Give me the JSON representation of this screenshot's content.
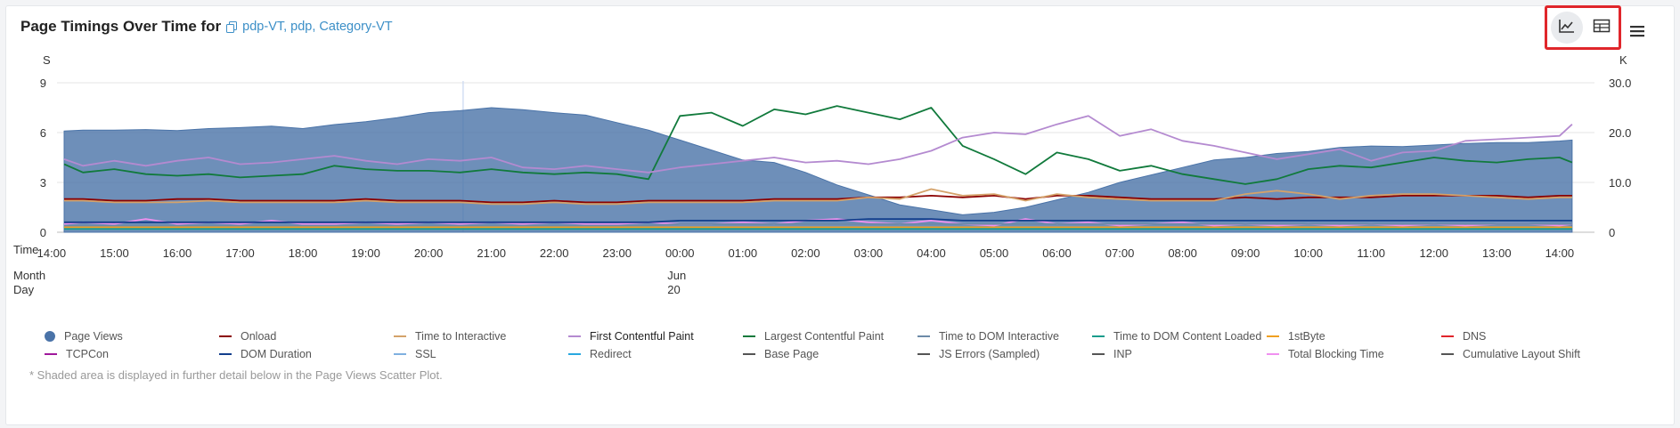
{
  "header": {
    "title": "Page Timings Over Time for",
    "link_text": "pdp-VT, pdp, Category-VT",
    "line_chart_button": "line-chart",
    "table_button": "table",
    "menu_button": "menu"
  },
  "footnote": "* Shaded area is displayed in further detail below in the Page Views Scatter Plot.",
  "legend": [
    {
      "label": "Page Views",
      "color": "#4a73a8",
      "kind": "dot"
    },
    {
      "label": "Onload",
      "color": "#8b0000",
      "kind": "line"
    },
    {
      "label": "Time to Interactive",
      "color": "#d4a26a",
      "kind": "line"
    },
    {
      "label": "First Contentful Paint",
      "color": "#b48ad0",
      "kind": "line"
    },
    {
      "label": "Largest Contentful Paint",
      "color": "#117a3c",
      "kind": "line"
    },
    {
      "label": "Time to DOM Interactive",
      "color": "#6c8aa8",
      "kind": "line"
    },
    {
      "label": "Time to DOM Content Loaded",
      "color": "#1a9c8c",
      "kind": "line"
    },
    {
      "label": "1stByte",
      "color": "#f0a020",
      "kind": "line"
    },
    {
      "label": "DNS",
      "color": "#e0242b",
      "kind": "line"
    },
    {
      "label": "TCPCon",
      "color": "#a0189c",
      "kind": "line"
    },
    {
      "label": "DOM Duration",
      "color": "#123e8c",
      "kind": "line"
    },
    {
      "label": "SSL",
      "color": "#7fb0e0",
      "kind": "line"
    },
    {
      "label": "Redirect",
      "color": "#29a8e0",
      "kind": "line"
    },
    {
      "label": "Base Page",
      "color": "#555555",
      "kind": "line"
    },
    {
      "label": "JS Errors (Sampled)",
      "color": "#555555",
      "kind": "line"
    },
    {
      "label": "INP",
      "color": "#555555",
      "kind": "line"
    },
    {
      "label": "Total Blocking Time",
      "color": "#f090f0",
      "kind": "line"
    },
    {
      "label": "Cumulative Layout Shift",
      "color": "#555555",
      "kind": "line"
    }
  ],
  "chart_data": {
    "type": "line",
    "left_axis_unit": "S",
    "right_axis_unit": "K",
    "left_ticks": [
      "0",
      "3",
      "6",
      "9"
    ],
    "left_range": [
      0,
      9
    ],
    "right_ticks": [
      "0",
      "10.0",
      "20.0",
      "30.0"
    ],
    "right_range": [
      0,
      30
    ],
    "x_label_time": "Time",
    "x_label_month_day": "Month\nDay",
    "month_label": "Jun",
    "day_label": "20",
    "x_tick_labels": [
      "14:00",
      "15:00",
      "16:00",
      "17:00",
      "18:00",
      "19:00",
      "20:00",
      "21:00",
      "22:00",
      "23:00",
      "00:00",
      "01:00",
      "02:00",
      "03:00",
      "04:00",
      "05:00",
      "06:00",
      "07:00",
      "08:00",
      "09:00",
      "10:00",
      "11:00",
      "12:00",
      "13:00",
      "14:00"
    ],
    "x_hours": [
      0.2,
      0.5,
      1,
      1.5,
      2,
      2.5,
      3,
      3.5,
      4,
      4.5,
      5,
      5.5,
      6,
      6.5,
      7,
      7.5,
      8,
      8.5,
      9,
      9.5,
      10,
      10.5,
      11,
      11.5,
      12,
      12.5,
      13,
      13.5,
      14,
      14.5,
      15,
      15.5,
      16,
      16.5,
      17,
      17.5,
      18,
      18.5,
      19,
      19.5,
      20,
      20.5,
      21,
      21.5,
      22,
      22.5,
      23,
      23.5,
      24,
      24.2
    ],
    "series": [
      {
        "name": "Page Views",
        "axis": "right",
        "area": true,
        "color": "#4a73a8",
        "values": [
          20.3,
          20.5,
          20.5,
          20.6,
          20.4,
          20.8,
          21.0,
          21.3,
          20.8,
          21.6,
          22.2,
          23.0,
          24.0,
          24.4,
          25.0,
          24.6,
          24.0,
          23.5,
          22.0,
          20.5,
          18.5,
          16.5,
          14.5,
          14.0,
          12.0,
          9.5,
          7.5,
          5.5,
          4.5,
          3.5,
          4.0,
          5.0,
          6.5,
          8.0,
          10.0,
          11.5,
          13.0,
          14.5,
          15.0,
          15.8,
          16.2,
          17.0,
          17.3,
          17.2,
          17.5,
          17.8,
          18.0,
          18.0,
          18.3,
          18.5
        ]
      },
      {
        "name": "Largest Contentful Paint",
        "axis": "left",
        "color": "#117a3c",
        "values": [
          4.1,
          3.6,
          3.8,
          3.5,
          3.4,
          3.5,
          3.3,
          3.4,
          3.5,
          4.0,
          3.8,
          3.7,
          3.7,
          3.6,
          3.8,
          3.6,
          3.5,
          3.6,
          3.5,
          3.2,
          7.0,
          7.2,
          6.4,
          7.4,
          7.1,
          7.6,
          7.2,
          6.8,
          7.5,
          5.2,
          4.4,
          3.5,
          4.8,
          4.4,
          3.7,
          4.0,
          3.5,
          3.2,
          2.9,
          3.2,
          3.8,
          4.0,
          3.9,
          4.2,
          4.5,
          4.3,
          4.2,
          4.4,
          4.5,
          4.2
        ]
      },
      {
        "name": "First Contentful Paint",
        "axis": "left",
        "color": "#b48ad0",
        "values": [
          4.4,
          4.0,
          4.3,
          4.0,
          4.3,
          4.5,
          4.1,
          4.2,
          4.4,
          4.6,
          4.3,
          4.1,
          4.4,
          4.3,
          4.5,
          3.9,
          3.8,
          4.0,
          3.8,
          3.6,
          3.9,
          4.1,
          4.3,
          4.5,
          4.2,
          4.3,
          4.1,
          4.4,
          4.9,
          5.7,
          6.0,
          5.9,
          6.5,
          7.0,
          5.8,
          6.2,
          5.5,
          5.2,
          4.8,
          4.4,
          4.7,
          5.0,
          4.3,
          4.8,
          4.9,
          5.5,
          5.6,
          5.7,
          5.8,
          6.5
        ]
      },
      {
        "name": "Onload",
        "axis": "left",
        "color": "#8b0000",
        "values": [
          2.0,
          2.0,
          1.9,
          1.9,
          2.0,
          2.0,
          1.9,
          1.9,
          1.9,
          1.9,
          2.0,
          1.9,
          1.9,
          1.9,
          1.8,
          1.8,
          1.9,
          1.8,
          1.8,
          1.9,
          1.9,
          1.9,
          1.9,
          2.0,
          2.0,
          2.0,
          2.1,
          2.1,
          2.2,
          2.1,
          2.2,
          2.0,
          2.2,
          2.2,
          2.1,
          2.0,
          2.0,
          2.0,
          2.1,
          2.0,
          2.1,
          2.1,
          2.1,
          2.2,
          2.2,
          2.2,
          2.2,
          2.1,
          2.2,
          2.2
        ]
      },
      {
        "name": "Time to Interactive",
        "axis": "left",
        "color": "#d4a26a",
        "values": [
          1.9,
          1.9,
          1.8,
          1.8,
          1.8,
          1.9,
          1.8,
          1.8,
          1.8,
          1.8,
          1.9,
          1.8,
          1.8,
          1.8,
          1.7,
          1.7,
          1.8,
          1.7,
          1.7,
          1.8,
          1.8,
          1.8,
          1.8,
          1.9,
          1.9,
          1.9,
          2.1,
          2.0,
          2.6,
          2.2,
          2.3,
          1.9,
          2.3,
          2.1,
          2.0,
          1.9,
          1.9,
          1.9,
          2.3,
          2.5,
          2.3,
          2.0,
          2.2,
          2.3,
          2.3,
          2.2,
          2.1,
          2.0,
          2.1,
          2.1
        ]
      },
      {
        "name": "Total Blocking Time",
        "axis": "left",
        "color": "#f090f0",
        "values": [
          0.5,
          0.6,
          0.5,
          0.8,
          0.5,
          0.6,
          0.5,
          0.7,
          0.5,
          0.5,
          0.6,
          0.5,
          0.6,
          0.5,
          0.6,
          0.5,
          0.6,
          0.5,
          0.5,
          0.6,
          0.5,
          0.5,
          0.6,
          0.5,
          0.7,
          0.8,
          0.6,
          0.5,
          0.7,
          0.5,
          0.4,
          0.8,
          0.5,
          0.6,
          0.4,
          0.5,
          0.6,
          0.4,
          0.5,
          0.4,
          0.5,
          0.4,
          0.5,
          0.4,
          0.5,
          0.4,
          0.5,
          0.5,
          0.4,
          0.5
        ]
      },
      {
        "name": "DOM Duration",
        "axis": "left",
        "color": "#123e8c",
        "values": [
          0.6,
          0.6,
          0.6,
          0.6,
          0.6,
          0.6,
          0.6,
          0.6,
          0.6,
          0.6,
          0.6,
          0.6,
          0.6,
          0.6,
          0.6,
          0.6,
          0.6,
          0.6,
          0.6,
          0.6,
          0.7,
          0.7,
          0.7,
          0.7,
          0.7,
          0.7,
          0.8,
          0.8,
          0.8,
          0.7,
          0.7,
          0.7,
          0.7,
          0.7,
          0.7,
          0.7,
          0.7,
          0.7,
          0.7,
          0.7,
          0.7,
          0.7,
          0.7,
          0.7,
          0.7,
          0.7,
          0.7,
          0.7,
          0.7,
          0.7
        ]
      },
      {
        "name": "Time to DOM Interactive",
        "axis": "left",
        "color": "#6c8aa8",
        "values": [
          0.4,
          0.4,
          0.4,
          0.4,
          0.4,
          0.4,
          0.4,
          0.4,
          0.4,
          0.4,
          0.4,
          0.4,
          0.4,
          0.4,
          0.4,
          0.4,
          0.4,
          0.4,
          0.4,
          0.4,
          0.5,
          0.5,
          0.5,
          0.5,
          0.5,
          0.5,
          0.5,
          0.5,
          0.5,
          0.5,
          0.5,
          0.5,
          0.5,
          0.5,
          0.5,
          0.5,
          0.5,
          0.5,
          0.5,
          0.5,
          0.5,
          0.5,
          0.5,
          0.5,
          0.5,
          0.5,
          0.5,
          0.5,
          0.5,
          0.5
        ]
      },
      {
        "name": "1stByte",
        "axis": "left",
        "color": "#f0a020",
        "values": [
          0.3,
          0.3,
          0.3,
          0.3,
          0.3,
          0.3,
          0.3,
          0.3,
          0.3,
          0.3,
          0.3,
          0.3,
          0.3,
          0.3,
          0.3,
          0.3,
          0.3,
          0.3,
          0.3,
          0.3,
          0.3,
          0.3,
          0.3,
          0.3,
          0.3,
          0.3,
          0.3,
          0.3,
          0.3,
          0.3,
          0.3,
          0.3,
          0.3,
          0.3,
          0.3,
          0.3,
          0.3,
          0.3,
          0.3,
          0.3,
          0.3,
          0.3,
          0.3,
          0.3,
          0.3,
          0.3,
          0.3,
          0.3,
          0.3,
          0.3
        ]
      },
      {
        "name": "Time to DOM Content Loaded",
        "axis": "left",
        "color": "#1a9c8c",
        "values": [
          0.2,
          0.2,
          0.2,
          0.2,
          0.2,
          0.2,
          0.2,
          0.2,
          0.2,
          0.2,
          0.2,
          0.2,
          0.2,
          0.2,
          0.2,
          0.2,
          0.2,
          0.2,
          0.2,
          0.2,
          0.2,
          0.2,
          0.2,
          0.2,
          0.2,
          0.2,
          0.2,
          0.2,
          0.2,
          0.2,
          0.2,
          0.2,
          0.2,
          0.2,
          0.2,
          0.2,
          0.2,
          0.2,
          0.2,
          0.2,
          0.2,
          0.2,
          0.2,
          0.2,
          0.2,
          0.2,
          0.2,
          0.2,
          0.2,
          0.2
        ]
      }
    ],
    "grid": true,
    "legend_position": "bottom"
  }
}
